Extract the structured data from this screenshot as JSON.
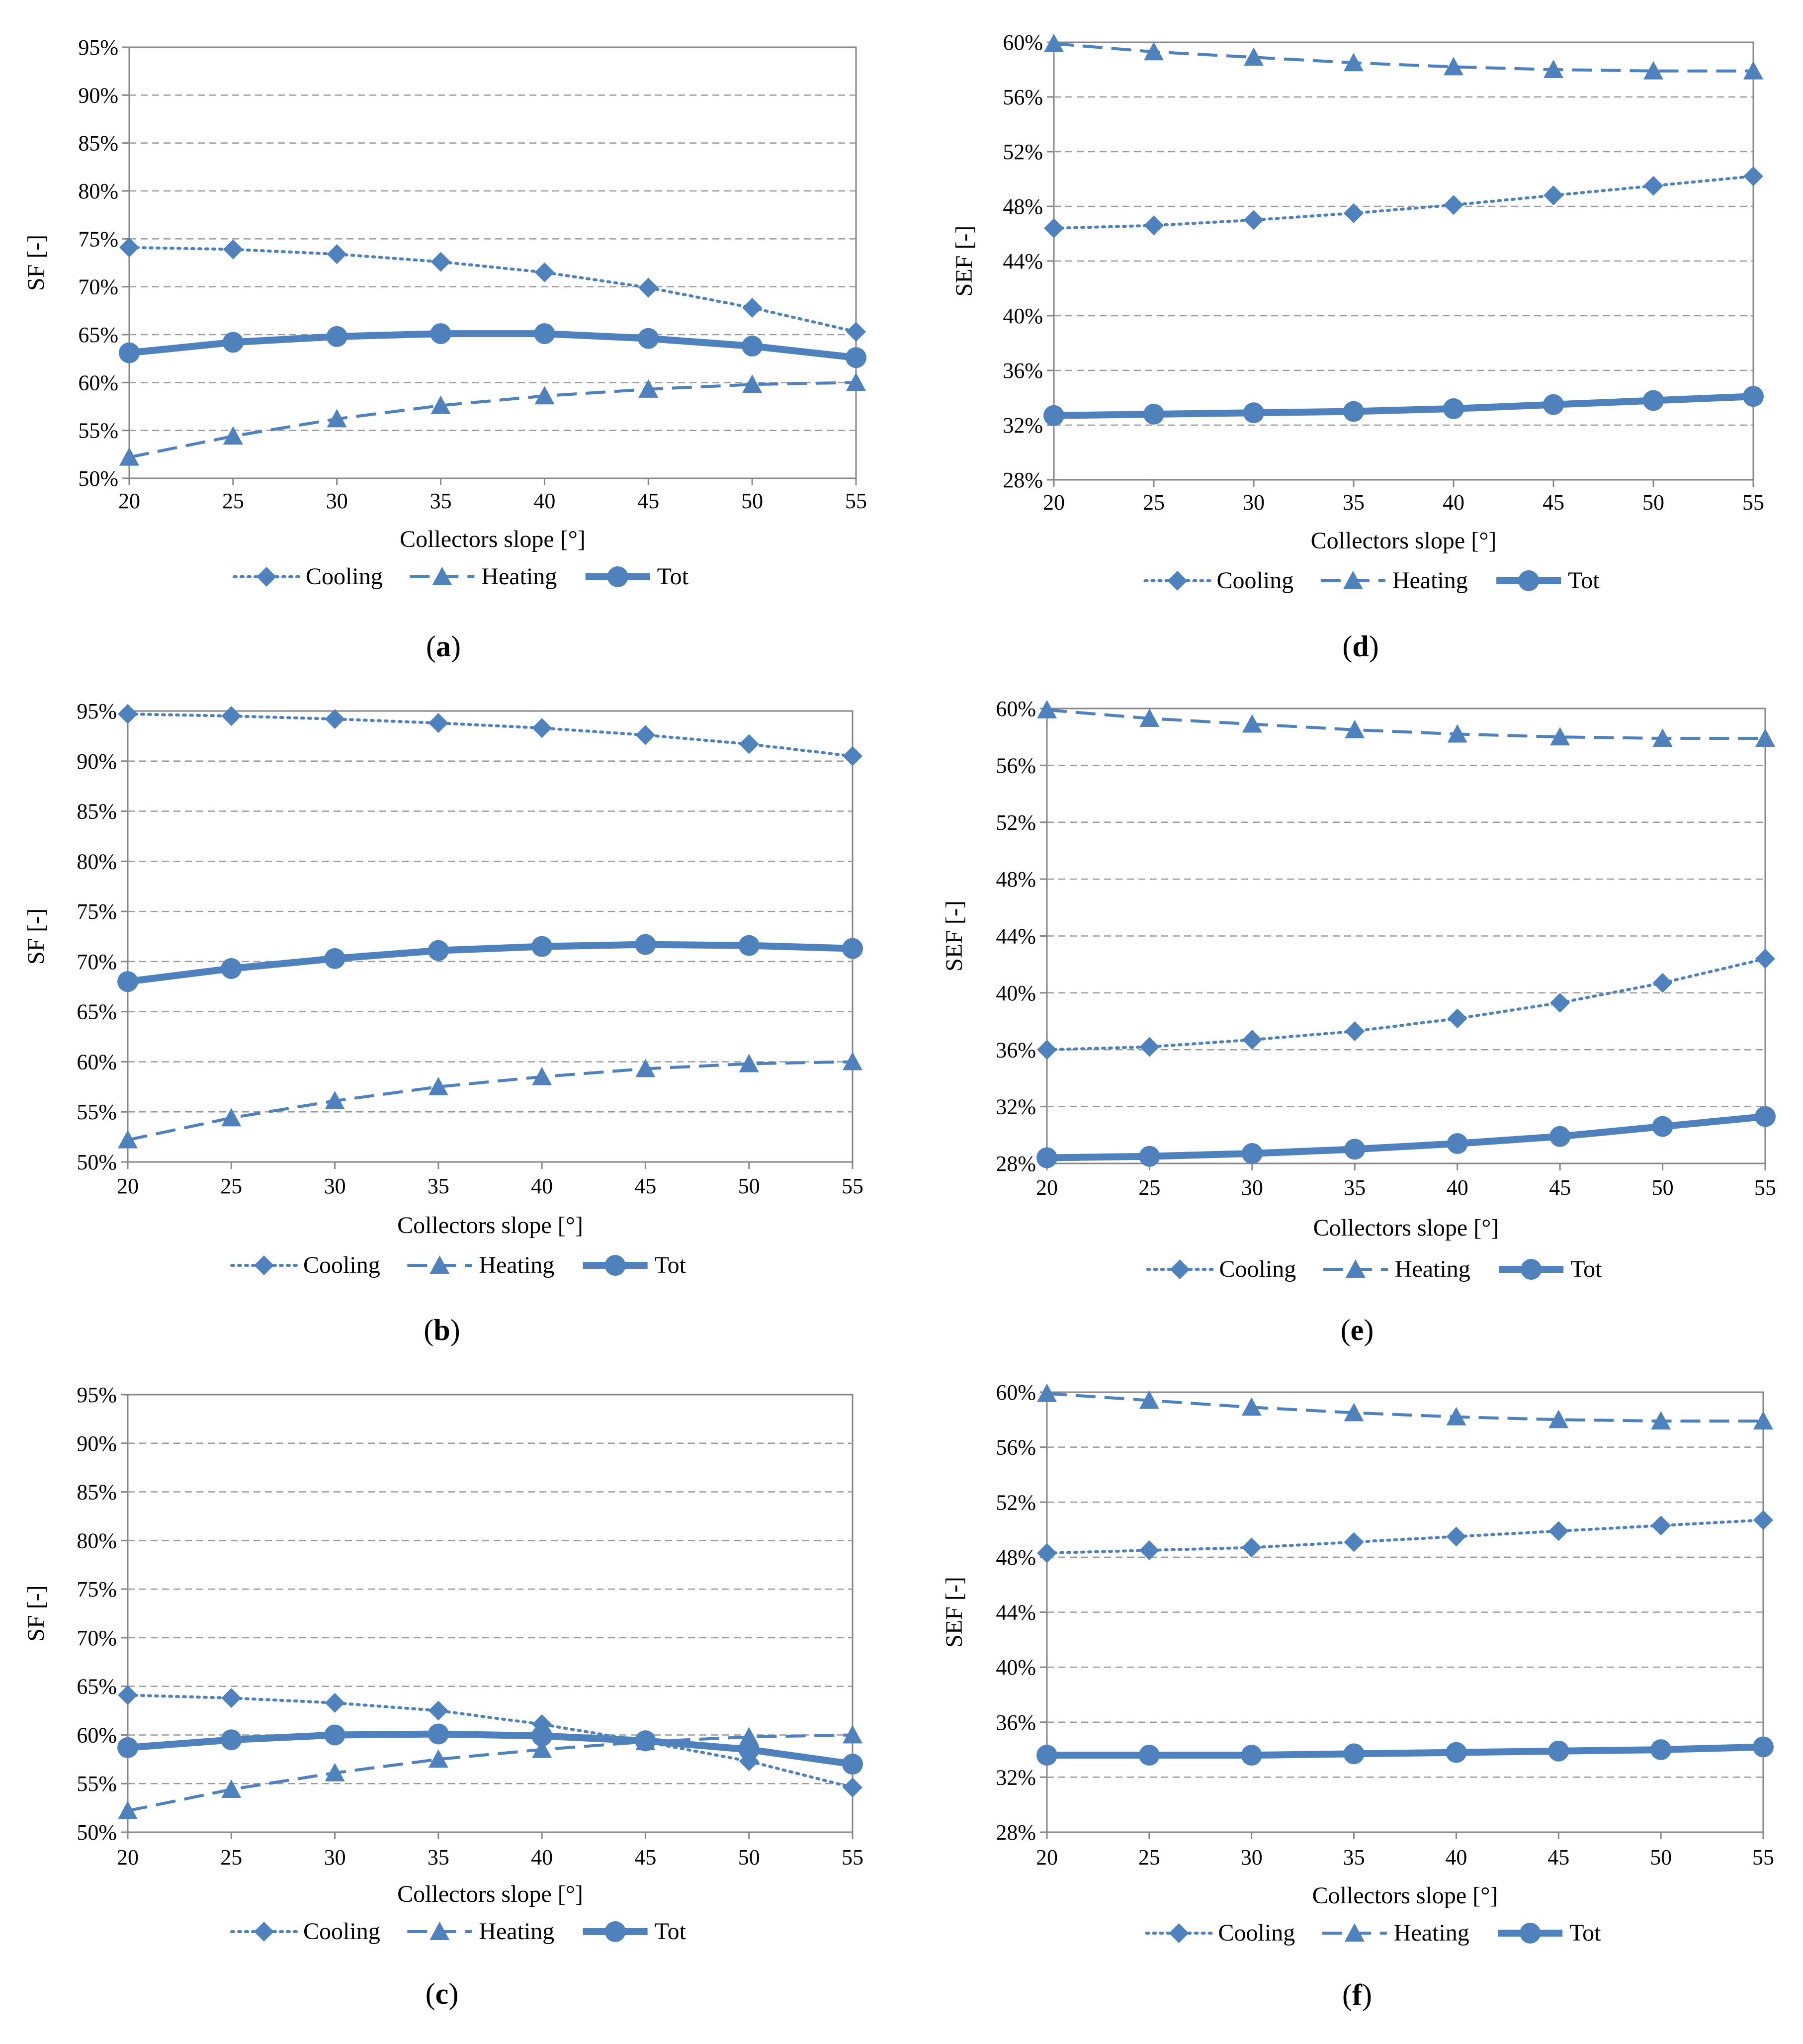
{
  "panels": [
    {
      "id": "a",
      "caption_open": "(",
      "caption_letter": "a",
      "caption_close": ")",
      "legend": [
        "Cooling",
        "Heating",
        "Tot"
      ],
      "chart_data": {
        "type": "line",
        "x": [
          20,
          25,
          30,
          35,
          40,
          45,
          50,
          55
        ],
        "xlabel": "Collectors slope [°]",
        "ylabel": "SF [-]",
        "ylim": [
          50,
          95
        ],
        "yticks": [
          50,
          55,
          60,
          65,
          70,
          75,
          80,
          85,
          90,
          95
        ],
        "ytick_labels": [
          "50%",
          "55%",
          "60%",
          "65%",
          "70%",
          "75%",
          "80%",
          "85%",
          "90%",
          "95%"
        ],
        "grid": true,
        "legend_position": "bottom",
        "series": [
          {
            "name": "Cooling",
            "style": "dotted",
            "marker": "diamond",
            "values": [
              74.1,
              73.9,
              73.4,
              72.6,
              71.5,
              69.9,
              67.8,
              65.3
            ]
          },
          {
            "name": "Heating",
            "style": "dashed",
            "marker": "triangle",
            "values": [
              52.2,
              54.4,
              56.2,
              57.6,
              58.6,
              59.3,
              59.8,
              60.0
            ]
          },
          {
            "name": "Tot",
            "style": "solid",
            "marker": "circle",
            "values": [
              63.1,
              64.2,
              64.8,
              65.1,
              65.1,
              64.6,
              63.8,
              62.6
            ]
          }
        ]
      }
    },
    {
      "id": "b",
      "caption_open": "(",
      "caption_letter": "b",
      "caption_close": ")",
      "legend": [
        "Cooling",
        "Heating",
        "Tot"
      ],
      "chart_data": {
        "type": "line",
        "x": [
          20,
          25,
          30,
          35,
          40,
          45,
          50,
          55
        ],
        "xlabel": "Collectors slope [°]",
        "ylabel": "SF [-]",
        "ylim": [
          50,
          95
        ],
        "yticks": [
          50,
          55,
          60,
          65,
          70,
          75,
          80,
          85,
          90,
          95
        ],
        "ytick_labels": [
          "50%",
          "55%",
          "60%",
          "65%",
          "70%",
          "75%",
          "80%",
          "85%",
          "90%",
          "95%"
        ],
        "grid": true,
        "legend_position": "bottom",
        "series": [
          {
            "name": "Cooling",
            "style": "dotted",
            "marker": "diamond",
            "values": [
              94.7,
              94.5,
              94.2,
              93.8,
              93.3,
              92.6,
              91.7,
              90.5
            ]
          },
          {
            "name": "Heating",
            "style": "dashed",
            "marker": "triangle",
            "values": [
              52.2,
              54.4,
              56.1,
              57.5,
              58.5,
              59.3,
              59.8,
              60.0
            ]
          },
          {
            "name": "Tot",
            "style": "solid",
            "marker": "circle",
            "values": [
              68.0,
              69.3,
              70.3,
              71.1,
              71.5,
              71.7,
              71.6,
              71.3
            ]
          }
        ]
      }
    },
    {
      "id": "c",
      "caption_open": "(",
      "caption_letter": "c",
      "caption_close": ")",
      "legend": [
        "Cooling",
        "Heating",
        "Tot"
      ],
      "chart_data": {
        "type": "line",
        "x": [
          20,
          25,
          30,
          35,
          40,
          45,
          50,
          55
        ],
        "xlabel": "Collectors slope [°]",
        "ylabel": "SF [-]",
        "ylim": [
          50,
          95
        ],
        "yticks": [
          50,
          55,
          60,
          65,
          70,
          75,
          80,
          85,
          90,
          95
        ],
        "ytick_labels": [
          "50%",
          "55%",
          "60%",
          "65%",
          "70%",
          "75%",
          "80%",
          "85%",
          "90%",
          "95%"
        ],
        "grid": true,
        "legend_position": "bottom",
        "series": [
          {
            "name": "Cooling",
            "style": "dotted",
            "marker": "diamond",
            "values": [
              64.1,
              63.8,
              63.3,
              62.5,
              61.1,
              59.3,
              57.3,
              54.6
            ]
          },
          {
            "name": "Heating",
            "style": "dashed",
            "marker": "triangle",
            "values": [
              52.2,
              54.4,
              56.1,
              57.5,
              58.5,
              59.3,
              59.8,
              60.0
            ]
          },
          {
            "name": "Tot",
            "style": "solid",
            "marker": "circle",
            "values": [
              58.7,
              59.5,
              60.0,
              60.1,
              59.9,
              59.4,
              58.5,
              57.0
            ]
          }
        ]
      }
    },
    {
      "id": "d",
      "caption_open": "(",
      "caption_letter": "d",
      "caption_close": ")",
      "legend": [
        "Cooling",
        "Heating",
        "Tot"
      ],
      "chart_data": {
        "type": "line",
        "x": [
          20,
          25,
          30,
          35,
          40,
          45,
          50,
          55
        ],
        "xlabel": "Collectors slope [°]",
        "ylabel": "SEF [-]",
        "ylim": [
          28,
          60
        ],
        "yticks": [
          28,
          32,
          36,
          40,
          44,
          48,
          52,
          56,
          60
        ],
        "ytick_labels": [
          "28%",
          "32%",
          "36%",
          "40%",
          "44%",
          "48%",
          "52%",
          "56%",
          "60%"
        ],
        "grid": true,
        "legend_position": "bottom",
        "series": [
          {
            "name": "Cooling",
            "style": "dotted",
            "marker": "diamond",
            "values": [
              46.4,
              46.6,
              47.0,
              47.5,
              48.1,
              48.8,
              49.5,
              50.2
            ]
          },
          {
            "name": "Heating",
            "style": "dashed",
            "marker": "triangle",
            "values": [
              59.9,
              59.3,
              58.9,
              58.5,
              58.2,
              58.0,
              57.9,
              57.9
            ]
          },
          {
            "name": "Tot",
            "style": "solid",
            "marker": "circle",
            "values": [
              32.7,
              32.8,
              32.9,
              33.0,
              33.2,
              33.5,
              33.8,
              34.1
            ]
          }
        ]
      }
    },
    {
      "id": "e",
      "caption_open": "(",
      "caption_letter": "e",
      "caption_close": ")",
      "legend": [
        "Cooling",
        "Heating",
        "Tot"
      ],
      "chart_data": {
        "type": "line",
        "x": [
          20,
          25,
          30,
          35,
          40,
          45,
          50,
          55
        ],
        "xlabel": "Collectors slope [°]",
        "ylabel": "SEF [-]",
        "ylim": [
          28,
          60
        ],
        "yticks": [
          28,
          32,
          36,
          40,
          44,
          48,
          52,
          56,
          60
        ],
        "ytick_labels": [
          "28%",
          "32%",
          "36%",
          "40%",
          "44%",
          "48%",
          "52%",
          "56%",
          "60%"
        ],
        "grid": true,
        "legend_position": "bottom",
        "series": [
          {
            "name": "Cooling",
            "style": "dotted",
            "marker": "diamond",
            "values": [
              36.0,
              36.2,
              36.7,
              37.3,
              38.2,
              39.3,
              40.7,
              42.4
            ]
          },
          {
            "name": "Heating",
            "style": "dashed",
            "marker": "triangle",
            "values": [
              59.9,
              59.3,
              58.9,
              58.5,
              58.2,
              58.0,
              57.9,
              57.9
            ]
          },
          {
            "name": "Tot",
            "style": "solid",
            "marker": "circle",
            "values": [
              28.4,
              28.5,
              28.7,
              29.0,
              29.4,
              29.9,
              30.6,
              31.3
            ]
          }
        ]
      }
    },
    {
      "id": "f",
      "caption_open": "(",
      "caption_letter": "f",
      "caption_close": ")",
      "legend": [
        "Cooling",
        "Heating",
        "Tot"
      ],
      "chart_data": {
        "type": "line",
        "x": [
          20,
          25,
          30,
          35,
          40,
          45,
          50,
          55
        ],
        "xlabel": "Collectors slope [°]",
        "ylabel": "SEF [-]",
        "ylim": [
          28,
          60
        ],
        "yticks": [
          28,
          32,
          36,
          40,
          44,
          48,
          52,
          56,
          60
        ],
        "ytick_labels": [
          "28%",
          "32%",
          "36%",
          "40%",
          "44%",
          "48%",
          "52%",
          "56%",
          "60%"
        ],
        "grid": true,
        "legend_position": "bottom",
        "series": [
          {
            "name": "Cooling",
            "style": "dotted",
            "marker": "diamond",
            "values": [
              48.3,
              48.5,
              48.7,
              49.1,
              49.5,
              49.9,
              50.3,
              50.7
            ]
          },
          {
            "name": "Heating",
            "style": "dashed",
            "marker": "triangle",
            "values": [
              59.9,
              59.4,
              58.9,
              58.5,
              58.2,
              58.0,
              57.9,
              57.9
            ]
          },
          {
            "name": "Tot",
            "style": "solid",
            "marker": "circle",
            "values": [
              33.6,
              33.6,
              33.6,
              33.7,
              33.8,
              33.9,
              34.0,
              34.2
            ]
          }
        ]
      }
    }
  ],
  "colors": {
    "series": "#4F81BD",
    "grid": "#9a9a9a",
    "axis": "#868686",
    "text": "#000000"
  }
}
